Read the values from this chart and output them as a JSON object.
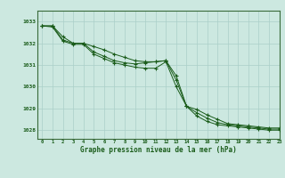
{
  "background_color": "#cce8e0",
  "grid_color": "#aacfc8",
  "line_color": "#1a5c1a",
  "title": "Graphe pression niveau de la mer (hPa)",
  "xlim": [
    -0.5,
    23
  ],
  "ylim": [
    1027.6,
    1033.5
  ],
  "yticks": [
    1028,
    1029,
    1030,
    1031,
    1032,
    1033
  ],
  "xticks": [
    0,
    1,
    2,
    3,
    4,
    5,
    6,
    7,
    8,
    9,
    10,
    11,
    12,
    13,
    14,
    15,
    16,
    17,
    18,
    19,
    20,
    21,
    22,
    23
  ],
  "series": [
    [
      1032.8,
      1032.8,
      1032.3,
      1032.0,
      1032.0,
      1031.85,
      1031.7,
      1031.5,
      1031.35,
      1031.2,
      1031.15,
      1031.15,
      1031.2,
      1030.5,
      1029.1,
      1028.95,
      1028.7,
      1028.5,
      1028.3,
      1028.25,
      1028.2,
      1028.15,
      1028.1,
      1028.1
    ],
    [
      1032.8,
      1032.8,
      1032.15,
      1032.0,
      1032.0,
      1031.6,
      1031.4,
      1031.2,
      1031.1,
      1031.05,
      1031.1,
      1031.15,
      1031.2,
      1030.3,
      1029.1,
      1028.8,
      1028.55,
      1028.35,
      1028.25,
      1028.2,
      1028.15,
      1028.1,
      1028.05,
      1028.05
    ],
    [
      1032.8,
      1032.75,
      1032.1,
      1031.95,
      1031.95,
      1031.5,
      1031.3,
      1031.1,
      1031.0,
      1030.9,
      1030.85,
      1030.85,
      1031.15,
      1030.0,
      1029.1,
      1028.65,
      1028.4,
      1028.25,
      1028.2,
      1028.15,
      1028.1,
      1028.05,
      1028.0,
      1028.0
    ]
  ]
}
